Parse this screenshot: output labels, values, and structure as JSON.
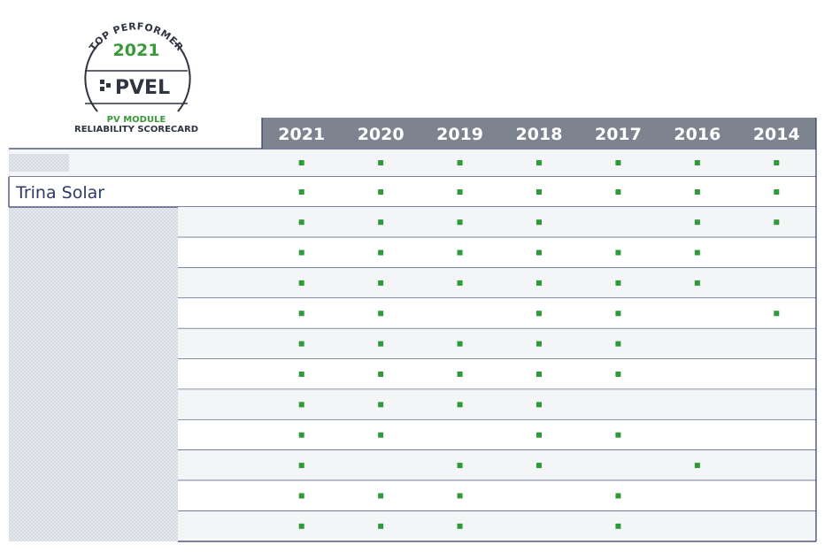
{
  "badge": {
    "arc_text": "TOP PERFORMER",
    "year": "2021",
    "logo": "PVEL",
    "line1": "PV MODULE",
    "line2": "RELIABILITY SCORECARD"
  },
  "table": {
    "columns": [
      "2021",
      "2020",
      "2019",
      "2018",
      "2017",
      "2016",
      "2014"
    ],
    "rows": [
      {
        "marks": [
          true,
          true,
          true,
          true,
          true,
          true,
          true
        ]
      },
      {
        "label": "Trina Solar",
        "marks": [
          true,
          true,
          true,
          true,
          true,
          true,
          true
        ]
      },
      {
        "marks": [
          true,
          true,
          true,
          true,
          false,
          true,
          true
        ]
      },
      {
        "marks": [
          true,
          true,
          true,
          true,
          true,
          true,
          false
        ]
      },
      {
        "marks": [
          true,
          true,
          true,
          true,
          true,
          true,
          false
        ]
      },
      {
        "marks": [
          true,
          true,
          false,
          true,
          true,
          false,
          true
        ]
      },
      {
        "marks": [
          true,
          true,
          true,
          true,
          true,
          false,
          false
        ]
      },
      {
        "marks": [
          true,
          true,
          true,
          true,
          true,
          false,
          false
        ]
      },
      {
        "marks": [
          true,
          true,
          true,
          true,
          false,
          false,
          false
        ]
      },
      {
        "marks": [
          true,
          true,
          false,
          true,
          true,
          false,
          false
        ]
      },
      {
        "marks": [
          true,
          false,
          true,
          true,
          false,
          true,
          false
        ]
      },
      {
        "marks": [
          true,
          true,
          true,
          false,
          true,
          false,
          false
        ]
      },
      {
        "marks": [
          true,
          true,
          true,
          false,
          true,
          false,
          false
        ]
      }
    ]
  }
}
